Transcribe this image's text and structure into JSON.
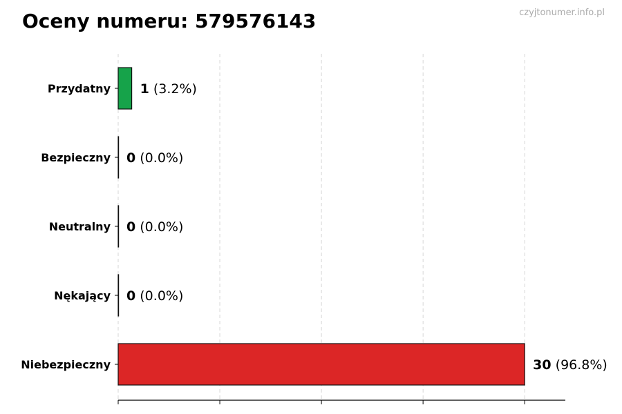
{
  "chart_data": {
    "type": "bar",
    "orientation": "horizontal",
    "title": "Oceny numeru: 579576143",
    "watermark": "czyjtonumer.info.pl",
    "categories": [
      "Przydatny",
      "Bezpieczny",
      "Neutralny",
      "Nękający",
      "Niebezpieczny"
    ],
    "values": [
      1,
      0,
      0,
      0,
      30
    ],
    "percent_labels": [
      "(3.2%)",
      "(0.0%)",
      "(0.0%)",
      "(0.0%)",
      "(96.8%)"
    ],
    "colors": [
      "#16a34a",
      "#6b7280",
      "#9ca3af",
      "#f97316",
      "#dc2626"
    ],
    "xlim": [
      0,
      33
    ],
    "xticks": [
      0,
      7.5,
      15,
      22.5,
      30
    ],
    "grid": "x-dashed",
    "xlabel": "",
    "ylabel": ""
  }
}
